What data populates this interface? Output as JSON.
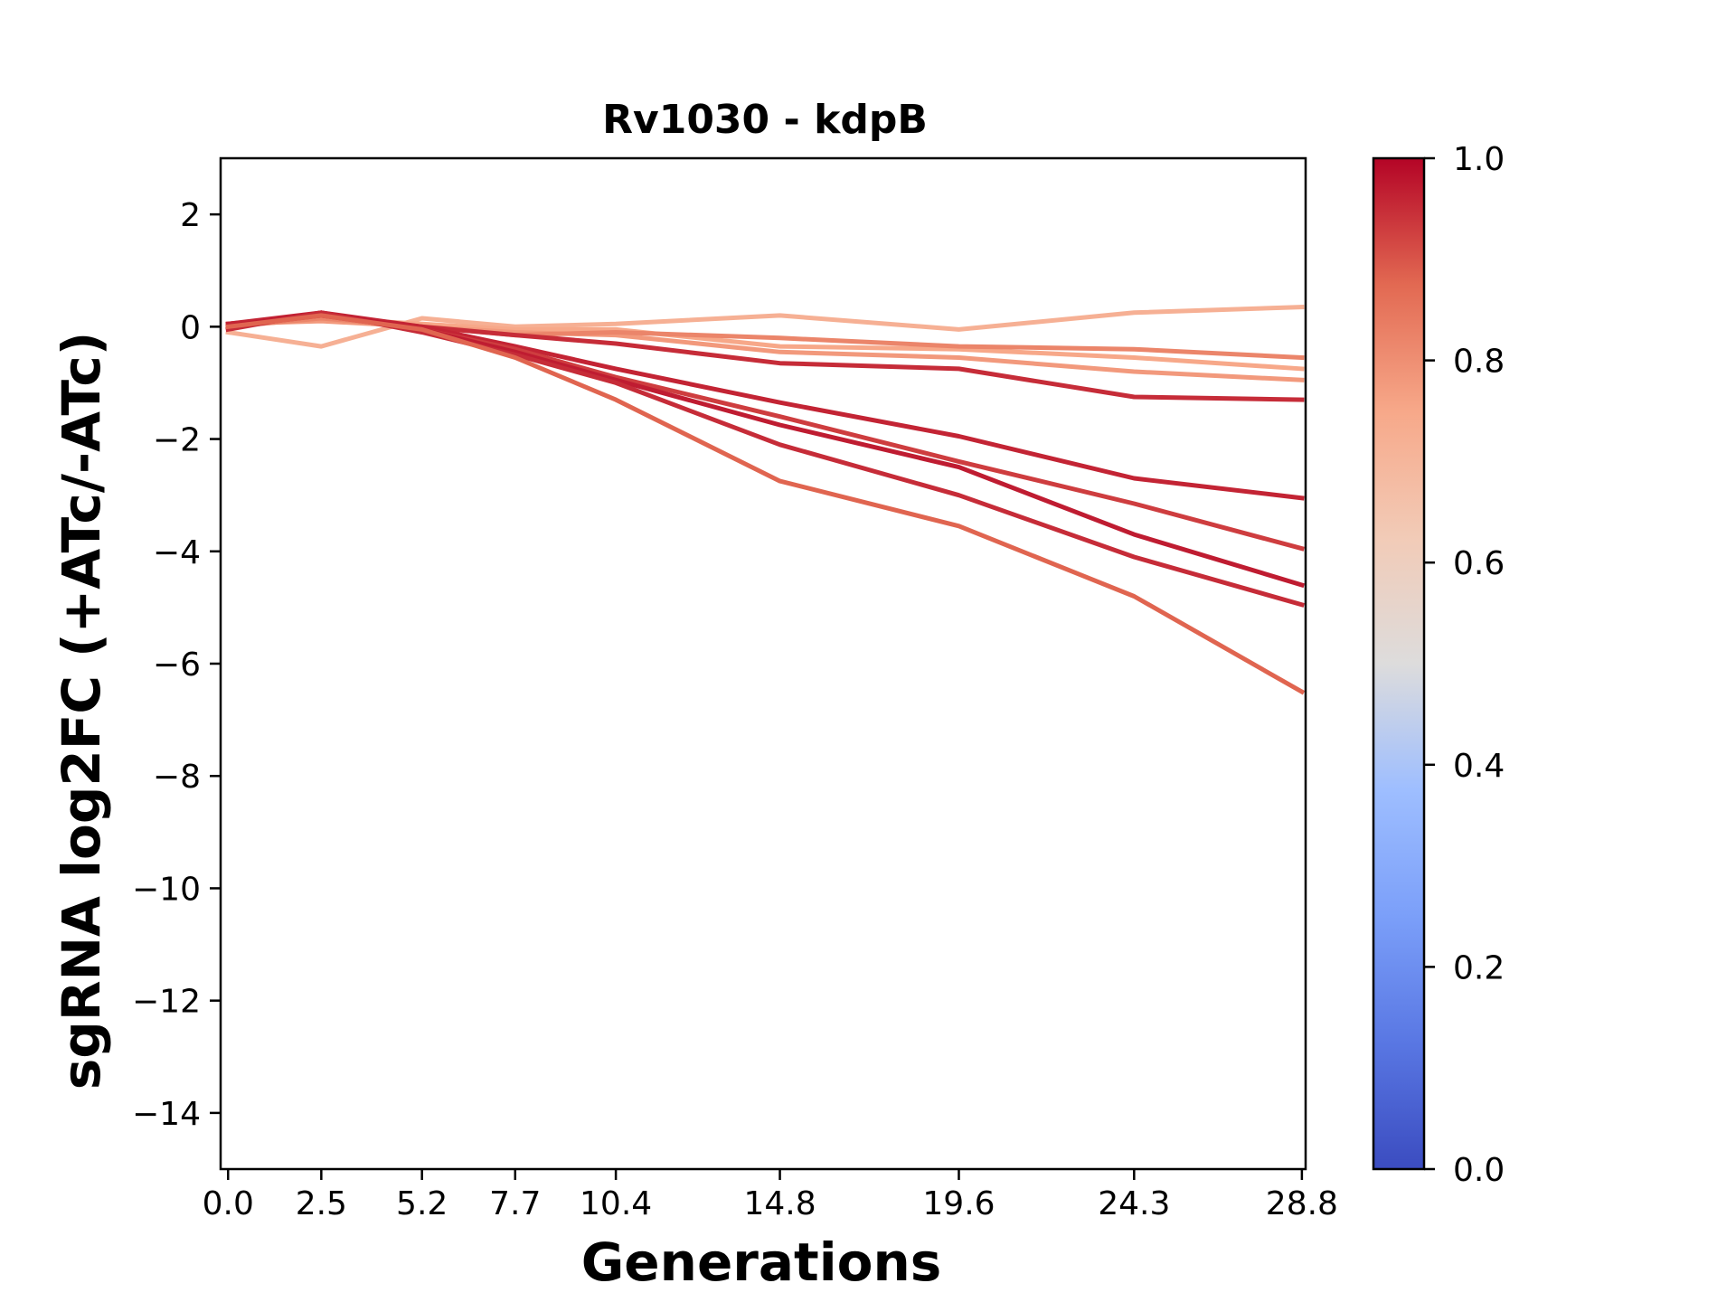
{
  "chart_data": {
    "type": "line",
    "title": "Rv1030 - kdpB",
    "xlabel": "Generations",
    "ylabel": "sgRNA log2FC (+ATc/-ATc)",
    "x": [
      0.0,
      2.5,
      5.2,
      7.7,
      10.4,
      14.8,
      19.6,
      24.3,
      28.8
    ],
    "x_tick_labels": [
      "0.0",
      "2.5",
      "5.2",
      "7.7",
      "10.4",
      "14.8",
      "19.6",
      "24.3",
      "28.8"
    ],
    "y_ticks": [
      2,
      0,
      -2,
      -4,
      -6,
      -8,
      -10,
      -12,
      -14
    ],
    "y_tick_labels": [
      "2",
      "0",
      "−2",
      "−4",
      "−6",
      "−8",
      "−10",
      "−12",
      "−14"
    ],
    "xlim": [
      -0.2,
      28.9
    ],
    "ylim": [
      -15,
      3
    ],
    "grid": false,
    "colorbar": {
      "colormap": "coolwarm",
      "range": [
        0.0,
        1.0
      ],
      "ticks": [
        0.0,
        0.2,
        0.4,
        0.6,
        0.8,
        1.0
      ],
      "tick_labels": [
        "0.0",
        "0.2",
        "0.4",
        "0.6",
        "0.8",
        "1.0"
      ]
    },
    "series": [
      {
        "color_value": 0.72,
        "values": [
          -0.1,
          -0.35,
          0.15,
          0.0,
          0.05,
          0.2,
          -0.05,
          0.25,
          0.35
        ]
      },
      {
        "color_value": 0.75,
        "values": [
          0.0,
          0.15,
          0.05,
          -0.05,
          -0.05,
          -0.35,
          -0.4,
          -0.55,
          -0.75
        ]
      },
      {
        "color_value": 0.78,
        "values": [
          0.05,
          0.1,
          0.0,
          -0.1,
          -0.15,
          -0.45,
          -0.55,
          -0.8,
          -0.95
        ]
      },
      {
        "color_value": 0.82,
        "values": [
          0.0,
          0.15,
          0.0,
          -0.15,
          -0.1,
          -0.2,
          -0.35,
          -0.4,
          -0.55
        ]
      },
      {
        "color_value": 0.95,
        "values": [
          0.05,
          0.2,
          0.0,
          -0.15,
          -0.3,
          -0.65,
          -0.75,
          -1.25,
          -1.3
        ]
      },
      {
        "color_value": 0.96,
        "values": [
          0.05,
          0.25,
          0.0,
          -0.35,
          -0.75,
          -1.35,
          -1.95,
          -2.7,
          -3.05
        ]
      },
      {
        "color_value": 0.93,
        "values": [
          0.0,
          0.2,
          -0.05,
          -0.4,
          -0.9,
          -1.6,
          -2.4,
          -3.15,
          -3.95
        ]
      },
      {
        "color_value": 0.97,
        "values": [
          0.0,
          0.25,
          -0.05,
          -0.45,
          -0.95,
          -1.75,
          -2.5,
          -3.7,
          -4.6
        ]
      },
      {
        "color_value": 0.95,
        "values": [
          -0.05,
          0.25,
          -0.1,
          -0.5,
          -1.0,
          -2.1,
          -3.0,
          -4.1,
          -4.95
        ]
      },
      {
        "color_value": 0.88,
        "values": [
          0.0,
          0.2,
          -0.05,
          -0.55,
          -1.3,
          -2.75,
          -3.55,
          -4.8,
          -6.5
        ]
      }
    ]
  }
}
